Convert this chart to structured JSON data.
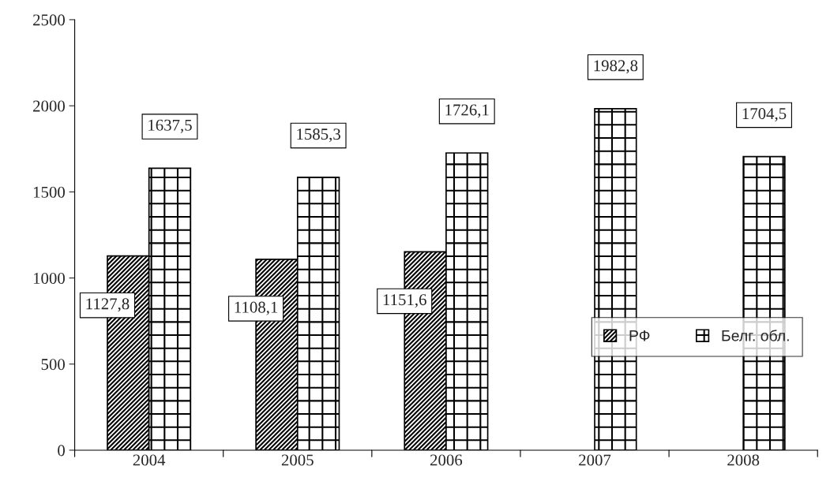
{
  "chart_data": {
    "type": "bar",
    "categories": [
      "2004",
      "2005",
      "2006",
      "2007",
      "2008"
    ],
    "series": [
      {
        "name": "РФ",
        "color": "#000000",
        "values": [
          1127.8,
          1108.1,
          1151.6,
          null,
          null
        ],
        "value_labels": [
          "1127,8",
          "1108,1",
          "1151,6",
          null,
          null
        ]
      },
      {
        "name": "Белг. обл.",
        "color": "#000000",
        "values": [
          1637.5,
          1585.3,
          1726.1,
          1982.8,
          1704.5
        ],
        "value_labels": [
          "1637,5",
          "1585,3",
          "1726,1",
          "1982,8",
          "1704,5"
        ]
      }
    ],
    "ylim": [
      0,
      2500
    ],
    "yticks": [
      0,
      500,
      1000,
      1500,
      2000,
      2500
    ],
    "grid": false,
    "legend": "bottom right"
  }
}
